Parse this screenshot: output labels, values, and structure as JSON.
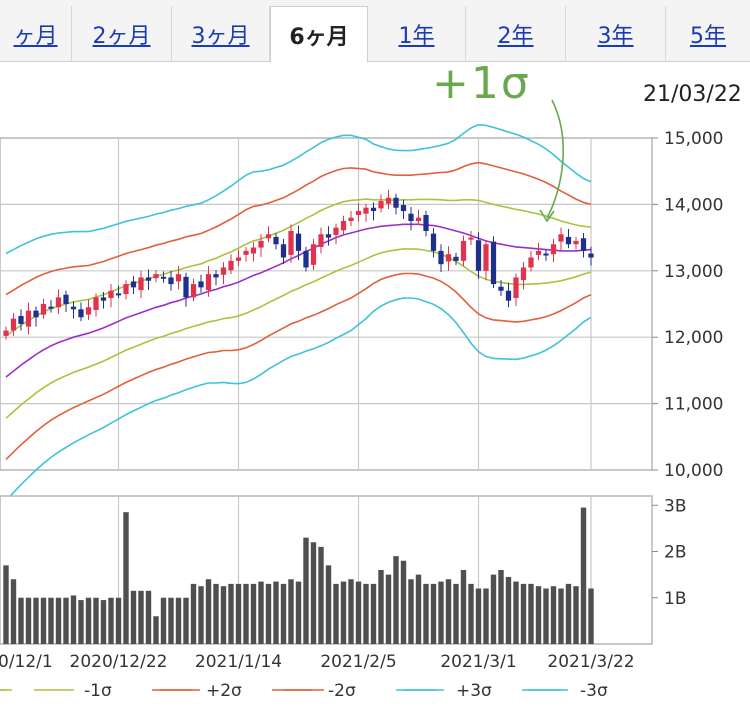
{
  "tabs": [
    {
      "label": "ヶ月",
      "active": false
    },
    {
      "label": "2ヶ月",
      "active": false
    },
    {
      "label": "3ヶ月",
      "active": false
    },
    {
      "label": "6ヶ月",
      "active": true
    },
    {
      "label": "1年",
      "active": false
    },
    {
      "label": "2年",
      "active": false
    },
    {
      "label": "3年",
      "active": false
    },
    {
      "label": "5年",
      "active": false
    }
  ],
  "annotation": "+1σ",
  "date_label": "21/03/22",
  "colors": {
    "up": "#e0334e",
    "down": "#1f2f8c",
    "ma": "#9b30c9",
    "sigma1": "#a8c43c",
    "sigma2": "#e0603a",
    "sigma3": "#3ec3d8",
    "volume": "#4f4f4f",
    "annotation": "#6aa84f"
  },
  "chart_data": [
    {
      "type": "candlestick",
      "ylim": [
        10000,
        15000
      ],
      "yticks": [
        "15,000",
        "14,000",
        "13,000",
        "12,000",
        "11,000",
        "10,000"
      ],
      "ytick_values": [
        15000,
        14000,
        13000,
        12000,
        11000,
        10000
      ],
      "x_dates": [
        "0/12/1",
        "2020/12/22",
        "2021/1/14",
        "2021/2/5",
        "2021/3/1",
        "2021/3/22"
      ],
      "x_date_index": [
        0,
        15,
        31,
        47,
        63,
        78
      ],
      "n_points": 79,
      "grid": true,
      "center": [
        11400,
        11490,
        11580,
        11660,
        11740,
        11810,
        11870,
        11920,
        11960,
        12000,
        12030,
        12060,
        12100,
        12140,
        12190,
        12240,
        12290,
        12330,
        12370,
        12410,
        12450,
        12480,
        12520,
        12550,
        12590,
        12620,
        12650,
        12690,
        12720,
        12760,
        12790,
        12830,
        12880,
        12930,
        12970,
        13020,
        13070,
        13120,
        13180,
        13230,
        13290,
        13340,
        13400,
        13450,
        13500,
        13540,
        13570,
        13600,
        13630,
        13650,
        13670,
        13680,
        13690,
        13700,
        13700,
        13700,
        13690,
        13680,
        13660,
        13630,
        13600,
        13570,
        13530,
        13490,
        13450,
        13420,
        13400,
        13380,
        13360,
        13350,
        13340,
        13330,
        13320,
        13310,
        13300,
        13300,
        13300,
        13310,
        13320
      ],
      "sigma": [
        620,
        610,
        600,
        590,
        580,
        570,
        560,
        550,
        540,
        530,
        520,
        510,
        505,
        500,
        495,
        490,
        485,
        480,
        475,
        470,
        468,
        466,
        464,
        462,
        460,
        458,
        456,
        460,
        470,
        480,
        495,
        510,
        520,
        520,
        510,
        500,
        495,
        490,
        490,
        495,
        500,
        505,
        510,
        510,
        505,
        500,
        490,
        470,
        450,
        420,
        400,
        385,
        375,
        370,
        370,
        375,
        385,
        395,
        410,
        430,
        460,
        500,
        540,
        570,
        580,
        580,
        575,
        570,
        565,
        555,
        540,
        525,
        505,
        480,
        450,
        420,
        390,
        360,
        340
      ],
      "closes": [
        12100,
        12280,
        12200,
        12400,
        12300,
        12500,
        12450,
        12600,
        12500,
        12420,
        12300,
        12450,
        12600,
        12550,
        12700,
        12650,
        12800,
        12750,
        12900,
        12850,
        12950,
        12900,
        12800,
        12950,
        12600,
        12800,
        12750,
        12950,
        12900,
        13050,
        13150,
        13200,
        13300,
        13350,
        13450,
        13550,
        13400,
        13200,
        13600,
        13300,
        13050,
        13400,
        13550,
        13500,
        13650,
        13750,
        13800,
        13900,
        13950,
        13900,
        14050,
        14100,
        13950,
        13900,
        13750,
        13800,
        13600,
        13300,
        13100,
        13250,
        13150,
        13450,
        13500,
        13000,
        13400,
        12800,
        12700,
        12550,
        12900,
        13050,
        13200,
        13300,
        13250,
        13400,
        13550,
        13400,
        13450,
        13300,
        13200
      ],
      "series": [
        {
          "name": "+1σ"
        },
        {
          "name": "-1σ"
        },
        {
          "name": "+2σ"
        },
        {
          "name": "-2σ"
        },
        {
          "name": "+3σ"
        },
        {
          "name": "-3σ"
        }
      ]
    },
    {
      "type": "bar",
      "yticks": [
        "3B",
        "2B",
        "1B"
      ],
      "ytick_values": [
        3,
        2,
        1
      ],
      "ylim": [
        0,
        3.2
      ],
      "values": [
        1.7,
        1.4,
        1.0,
        1.0,
        1.0,
        1.0,
        1.0,
        1.0,
        1.0,
        1.05,
        0.95,
        1.0,
        1.0,
        0.95,
        1.0,
        1.0,
        2.85,
        1.15,
        1.15,
        1.15,
        0.6,
        1.0,
        1.0,
        1.0,
        1.0,
        1.3,
        1.25,
        1.4,
        1.3,
        1.25,
        1.3,
        1.3,
        1.3,
        1.3,
        1.35,
        1.3,
        1.35,
        1.3,
        1.4,
        1.35,
        2.3,
        2.2,
        2.1,
        1.7,
        1.3,
        1.35,
        1.4,
        1.35,
        1.3,
        1.3,
        1.6,
        1.5,
        1.9,
        1.8,
        1.4,
        1.5,
        1.3,
        1.3,
        1.35,
        1.4,
        1.3,
        1.6,
        1.3,
        1.2,
        1.2,
        1.5,
        1.6,
        1.45,
        1.35,
        1.3,
        1.3,
        1.25,
        1.2,
        1.25,
        1.2,
        1.3,
        1.25,
        2.95,
        1.2
      ]
    }
  ]
}
